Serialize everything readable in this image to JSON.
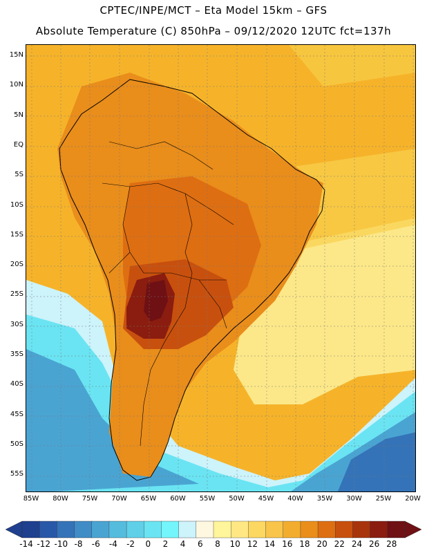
{
  "title_line1": "CPTEC/INPE/MCT –  Eta Model 15km – GFS",
  "title_line2": "Absolute Temperature (C) 850hPa – 09/12/2020 12UTC fct=137h",
  "lat_labels": [
    "15N",
    "10N",
    "5N",
    "EQ",
    "5S",
    "10S",
    "15S",
    "20S",
    "25S",
    "30S",
    "35S",
    "40S",
    "45S",
    "50S",
    "55S"
  ],
  "lon_labels": [
    "85W",
    "80W",
    "75W",
    "70W",
    "65W",
    "60W",
    "55W",
    "50W",
    "45W",
    "40W",
    "35W",
    "30W",
    "25W",
    "20W"
  ],
  "colorbar": {
    "labels": [
      "-14",
      "-12",
      "-10",
      "-8",
      "-6",
      "-4",
      "-2",
      "0",
      "2",
      "4",
      "6",
      "8",
      "10",
      "12",
      "14",
      "16",
      "18",
      "20",
      "22",
      "24",
      "26",
      "28"
    ],
    "colors": [
      "#1f3f8f",
      "#2a58a8",
      "#3473b8",
      "#3f8cc6",
      "#4aa4d2",
      "#55bcde",
      "#5fd0e8",
      "#6ae4f2",
      "#74f4fb",
      "#cdf3fb",
      "#fff8e0",
      "#fff59a",
      "#ffe884",
      "#fcd862",
      "#f8c44a",
      "#f3ad2e",
      "#e98d1b",
      "#de6e12",
      "#c8500e",
      "#a8340c",
      "#8a1d0f",
      "#6e1014"
    ]
  },
  "map_colors": {
    "ocean_warm": "#f6b32a",
    "ocean_mid": "#f9d24e",
    "ocean_light": "#fdf19a",
    "cold_1": "#cdf3fb",
    "cold_2": "#6ae4f2",
    "cold_3": "#4aa4d2",
    "cold_4": "#3473b8",
    "land_warm": "#e98d1b",
    "land_hot": "#de6e12",
    "land_hotter": "#c8500e",
    "land_core": "#8a1d0f",
    "land_max": "#6e1014"
  }
}
